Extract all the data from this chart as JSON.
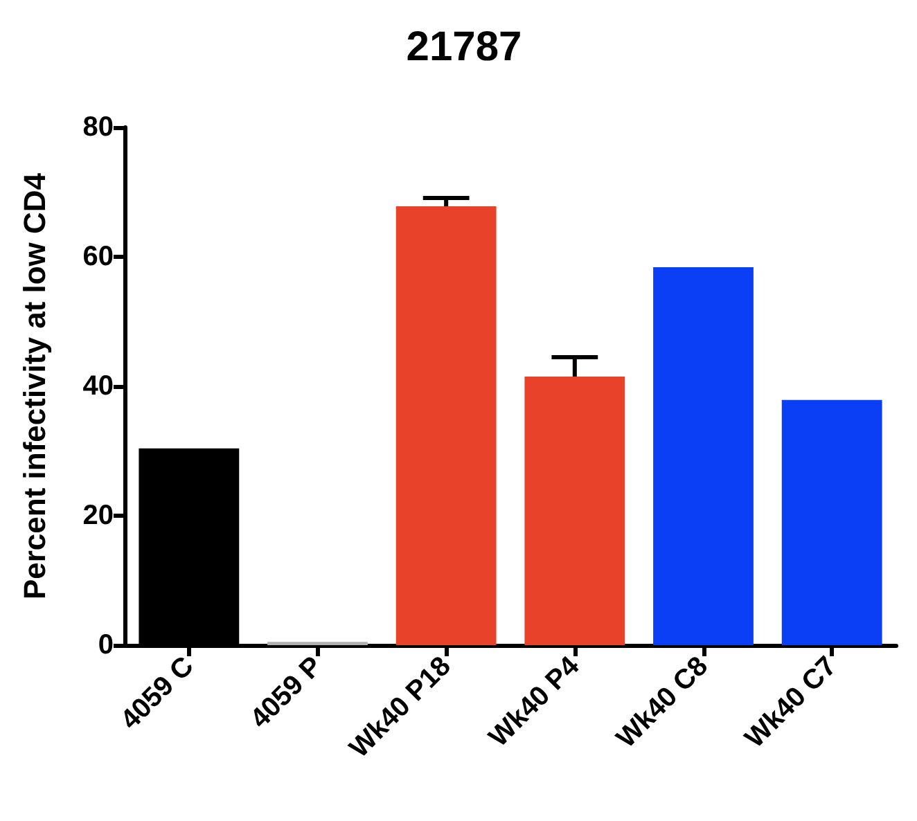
{
  "chart_data": {
    "type": "bar",
    "title": "21787",
    "ylabel": "Percent infectivity at low CD4",
    "categories": [
      "4059 C",
      "4059 P",
      "Wk40 P18",
      "Wk40 P4",
      "Wk40 C8",
      "Wk40 C7"
    ],
    "values": [
      30.4,
      0.5,
      67.8,
      41.5,
      58.4,
      37.9
    ],
    "colors": [
      "#000000",
      "#b0b0b0",
      "#e8432a",
      "#e8432a",
      "#0a3ff5",
      "#0a3ff5"
    ],
    "errors": [
      null,
      null,
      [
        67.8,
        69.1
      ],
      [
        41.5,
        44.5
      ],
      null,
      null
    ],
    "ylim": [
      0,
      80
    ],
    "yticks": [
      0,
      20,
      40,
      60,
      80
    ],
    "grid": false
  }
}
